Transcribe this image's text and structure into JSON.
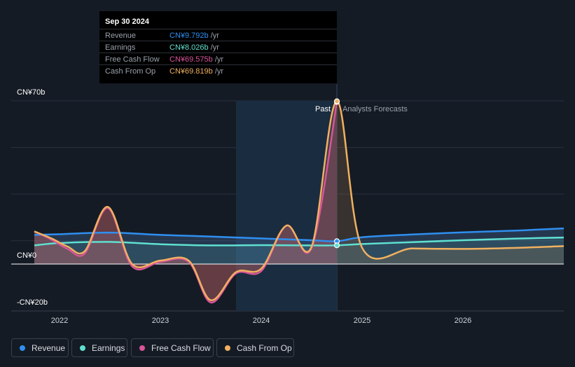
{
  "chart_data": {
    "type": "line",
    "y_axis": {
      "min": -20,
      "max": 70,
      "labels": [
        "CN¥70b",
        "CN¥0",
        "-CN¥20b"
      ]
    },
    "x_axis": {
      "ticks": [
        "2022",
        "2023",
        "2024",
        "2025",
        "2026"
      ]
    },
    "regions": {
      "past_label": "Past",
      "forecast_label": "Analysts Forecasts"
    },
    "series": [
      {
        "name": "Revenue",
        "color": "#2f8ff0",
        "points": [
          [
            2021.75,
            12.5
          ],
          [
            2022.0,
            12.8
          ],
          [
            2022.5,
            13.5
          ],
          [
            2023.0,
            12.5
          ],
          [
            2023.5,
            11.8
          ],
          [
            2024.0,
            11.0
          ],
          [
            2024.5,
            10.2
          ],
          [
            2024.75,
            9.792
          ],
          [
            2025.0,
            11.5
          ],
          [
            2025.5,
            12.7
          ],
          [
            2026.0,
            13.6
          ],
          [
            2026.5,
            14.3
          ],
          [
            2026.75,
            14.8
          ],
          [
            2027.0,
            15.3
          ]
        ]
      },
      {
        "name": "Earnings",
        "color": "#5fe0d0",
        "points": [
          [
            2021.75,
            8.0
          ],
          [
            2022.0,
            9.0
          ],
          [
            2022.5,
            9.5
          ],
          [
            2023.0,
            8.5
          ],
          [
            2023.5,
            8.0
          ],
          [
            2024.0,
            8.1
          ],
          [
            2024.5,
            8.0
          ],
          [
            2024.75,
            8.026
          ],
          [
            2025.0,
            8.6
          ],
          [
            2025.5,
            9.4
          ],
          [
            2026.0,
            10.2
          ],
          [
            2026.5,
            10.9
          ],
          [
            2027.0,
            11.4
          ]
        ]
      },
      {
        "name": "Free Cash Flow",
        "color": "#d9549a",
        "points": [
          [
            2021.75,
            14.0
          ],
          [
            2021.92,
            10.5
          ],
          [
            2022.08,
            6.5
          ],
          [
            2022.25,
            4.5
          ],
          [
            2022.48,
            24.0
          ],
          [
            2022.72,
            -1.0
          ],
          [
            2023.0,
            1.0
          ],
          [
            2023.28,
            1.0
          ],
          [
            2023.5,
            -16.5
          ],
          [
            2023.75,
            -4.0
          ],
          [
            2024.0,
            -3.0
          ],
          [
            2024.25,
            16.5
          ],
          [
            2024.5,
            7.0
          ],
          [
            2024.75,
            69.575
          ]
        ]
      },
      {
        "name": "Cash From Op",
        "color": "#f0b060",
        "points": [
          [
            2021.75,
            14.0
          ],
          [
            2021.92,
            11.0
          ],
          [
            2022.08,
            7.5
          ],
          [
            2022.25,
            5.5
          ],
          [
            2022.48,
            24.5
          ],
          [
            2022.72,
            0.0
          ],
          [
            2023.0,
            1.5
          ],
          [
            2023.28,
            1.5
          ],
          [
            2023.5,
            -15.5
          ],
          [
            2023.75,
            -3.5
          ],
          [
            2024.0,
            -2.0
          ],
          [
            2024.25,
            16.5
          ],
          [
            2024.5,
            7.5
          ],
          [
            2024.75,
            69.819
          ],
          [
            2025.0,
            7.0
          ],
          [
            2025.5,
            6.7
          ],
          [
            2026.0,
            6.5
          ],
          [
            2026.5,
            6.9
          ],
          [
            2027.0,
            7.7
          ]
        ]
      }
    ]
  },
  "tooltip": {
    "date": "Sep 30 2024",
    "rows": [
      {
        "label": "Revenue",
        "value": "CN¥9.792b",
        "unit": "/yr",
        "color": "#2f8ff0"
      },
      {
        "label": "Earnings",
        "value": "CN¥8.026b",
        "unit": "/yr",
        "color": "#5fe0d0"
      },
      {
        "label": "Free Cash Flow",
        "value": "CN¥69.575b",
        "unit": "/yr",
        "color": "#d9549a"
      },
      {
        "label": "Cash From Op",
        "value": "CN¥69.819b",
        "unit": "/yr",
        "color": "#f0b060"
      }
    ]
  },
  "legend": [
    {
      "label": "Revenue",
      "color": "#2f8ff0"
    },
    {
      "label": "Earnings",
      "color": "#5fe0d0"
    },
    {
      "label": "Free Cash Flow",
      "color": "#d9549a"
    },
    {
      "label": "Cash From Op",
      "color": "#f0b060"
    }
  ]
}
